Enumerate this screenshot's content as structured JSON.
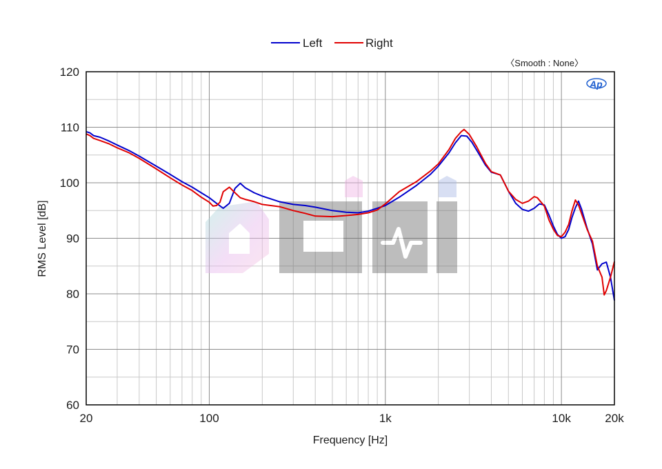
{
  "chart_data": {
    "type": "line",
    "xlabel": "Frequency [Hz]",
    "ylabel": "RMS Level [dB]",
    "xscale": "log",
    "xlim": [
      20,
      20000
    ],
    "ylim": [
      60,
      120
    ],
    "x_ticks": [
      {
        "value": 20,
        "label": "20"
      },
      {
        "value": 100,
        "label": "100"
      },
      {
        "value": 1000,
        "label": "1k"
      },
      {
        "value": 10000,
        "label": "10k"
      },
      {
        "value": 20000,
        "label": "20k"
      }
    ],
    "y_ticks": [
      60,
      70,
      80,
      90,
      100,
      110,
      120
    ],
    "grid": true,
    "legend_position": "top-center",
    "annotation": "〈Smooth : None〉",
    "logo_text": "AP",
    "watermark_text": "ciHi",
    "series": [
      {
        "name": "Left",
        "color": "#0000cc",
        "points": [
          [
            20,
            109.2
          ],
          [
            21,
            109.0
          ],
          [
            22,
            108.5
          ],
          [
            24,
            108.2
          ],
          [
            27,
            107.5
          ],
          [
            30,
            106.8
          ],
          [
            35,
            105.8
          ],
          [
            40,
            104.8
          ],
          [
            50,
            103.0
          ],
          [
            60,
            101.5
          ],
          [
            70,
            100.2
          ],
          [
            80,
            99.2
          ],
          [
            90,
            98.2
          ],
          [
            100,
            97.3
          ],
          [
            110,
            96.3
          ],
          [
            120,
            95.4
          ],
          [
            130,
            96.3
          ],
          [
            140,
            99.0
          ],
          [
            150,
            99.9
          ],
          [
            160,
            99.1
          ],
          [
            180,
            98.2
          ],
          [
            200,
            97.6
          ],
          [
            250,
            96.6
          ],
          [
            300,
            96.1
          ],
          [
            350,
            95.9
          ],
          [
            400,
            95.6
          ],
          [
            500,
            95.0
          ],
          [
            600,
            94.7
          ],
          [
            700,
            94.6
          ],
          [
            800,
            94.9
          ],
          [
            900,
            95.4
          ],
          [
            1000,
            95.9
          ],
          [
            1200,
            97.4
          ],
          [
            1500,
            99.5
          ],
          [
            1800,
            101.5
          ],
          [
            2000,
            103.0
          ],
          [
            2300,
            105.4
          ],
          [
            2500,
            107.2
          ],
          [
            2700,
            108.5
          ],
          [
            2900,
            108.4
          ],
          [
            3100,
            107.3
          ],
          [
            3400,
            105.2
          ],
          [
            3700,
            103.2
          ],
          [
            4000,
            101.9
          ],
          [
            4500,
            101.4
          ],
          [
            5000,
            98.5
          ],
          [
            5500,
            96.3
          ],
          [
            6000,
            95.2
          ],
          [
            6500,
            94.9
          ],
          [
            7000,
            95.4
          ],
          [
            7500,
            96.2
          ],
          [
            8000,
            96.0
          ],
          [
            8500,
            94.2
          ],
          [
            9000,
            92.2
          ],
          [
            9500,
            90.7
          ],
          [
            10000,
            90.0
          ],
          [
            10500,
            90.3
          ],
          [
            11000,
            91.6
          ],
          [
            11500,
            93.8
          ],
          [
            12000,
            95.5
          ],
          [
            12500,
            96.7
          ],
          [
            13000,
            95.3
          ],
          [
            14000,
            91.8
          ],
          [
            15000,
            89.0
          ],
          [
            16000,
            84.3
          ],
          [
            17000,
            85.4
          ],
          [
            18000,
            85.7
          ],
          [
            19000,
            83.0
          ],
          [
            20000,
            78.8
          ]
        ]
      },
      {
        "name": "Right",
        "color": "#e00000",
        "points": [
          [
            20,
            108.8
          ],
          [
            21,
            108.5
          ],
          [
            22,
            108.0
          ],
          [
            24,
            107.6
          ],
          [
            27,
            107.0
          ],
          [
            30,
            106.3
          ],
          [
            35,
            105.4
          ],
          [
            40,
            104.4
          ],
          [
            50,
            102.5
          ],
          [
            60,
            100.9
          ],
          [
            70,
            99.6
          ],
          [
            80,
            98.6
          ],
          [
            90,
            97.4
          ],
          [
            100,
            96.5
          ],
          [
            105,
            95.8
          ],
          [
            110,
            95.9
          ],
          [
            115,
            96.5
          ],
          [
            120,
            98.4
          ],
          [
            130,
            99.2
          ],
          [
            140,
            98.2
          ],
          [
            150,
            97.3
          ],
          [
            160,
            97.0
          ],
          [
            180,
            96.6
          ],
          [
            200,
            96.1
          ],
          [
            250,
            95.7
          ],
          [
            300,
            95.0
          ],
          [
            350,
            94.5
          ],
          [
            400,
            94.0
          ],
          [
            500,
            93.9
          ],
          [
            600,
            94.1
          ],
          [
            700,
            94.3
          ],
          [
            800,
            94.6
          ],
          [
            900,
            95.1
          ],
          [
            1000,
            96.2
          ],
          [
            1200,
            98.4
          ],
          [
            1500,
            100.2
          ],
          [
            1800,
            102.1
          ],
          [
            2000,
            103.4
          ],
          [
            2300,
            106.0
          ],
          [
            2500,
            108.0
          ],
          [
            2700,
            109.2
          ],
          [
            2800,
            109.6
          ],
          [
            3000,
            108.7
          ],
          [
            3300,
            106.5
          ],
          [
            3700,
            103.5
          ],
          [
            4000,
            102.0
          ],
          [
            4500,
            101.4
          ],
          [
            5000,
            98.5
          ],
          [
            5500,
            97.0
          ],
          [
            6000,
            96.3
          ],
          [
            6500,
            96.7
          ],
          [
            7000,
            97.5
          ],
          [
            7300,
            97.3
          ],
          [
            8000,
            95.8
          ],
          [
            8500,
            93.3
          ],
          [
            9000,
            91.6
          ],
          [
            9500,
            90.5
          ],
          [
            10000,
            90.3
          ],
          [
            10500,
            91.1
          ],
          [
            11000,
            92.5
          ],
          [
            11500,
            95.0
          ],
          [
            12000,
            96.9
          ],
          [
            12500,
            96.0
          ],
          [
            13000,
            94.5
          ],
          [
            14000,
            91.6
          ],
          [
            15000,
            89.5
          ],
          [
            16000,
            85.0
          ],
          [
            17000,
            83.0
          ],
          [
            17500,
            79.8
          ],
          [
            18000,
            80.6
          ],
          [
            19000,
            83.0
          ],
          [
            20000,
            85.8
          ]
        ]
      }
    ]
  }
}
